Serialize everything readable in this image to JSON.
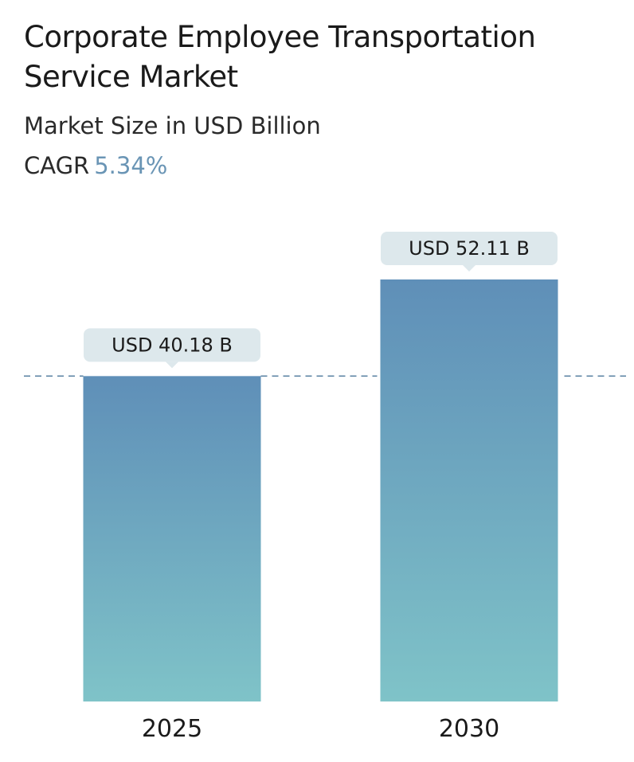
{
  "header": {
    "title": "Corporate Employee Transportation Service Market",
    "subtitle": "Market Size in USD Billion",
    "cagr_label": "CAGR",
    "cagr_value": "5.34%"
  },
  "colors": {
    "bar_top": "#5f8fb8",
    "bar_bottom": "#7fc3c8",
    "label_bg": "#dde8ec",
    "reference_line": "#5f86a6",
    "accent": "#6a95b5"
  },
  "chart_data": {
    "type": "bar",
    "title": "Corporate Employee Transportation Service Market",
    "subtitle": "Market Size in USD Billion",
    "categories": [
      "2025",
      "2030"
    ],
    "values": [
      40.18,
      52.11
    ],
    "data_labels": [
      "USD 40.18 B",
      "USD 52.11 B"
    ],
    "unit": "USD Billion",
    "reference_line": 40.18,
    "ylim": [
      0,
      60
    ],
    "grid": false,
    "legend": "none"
  }
}
